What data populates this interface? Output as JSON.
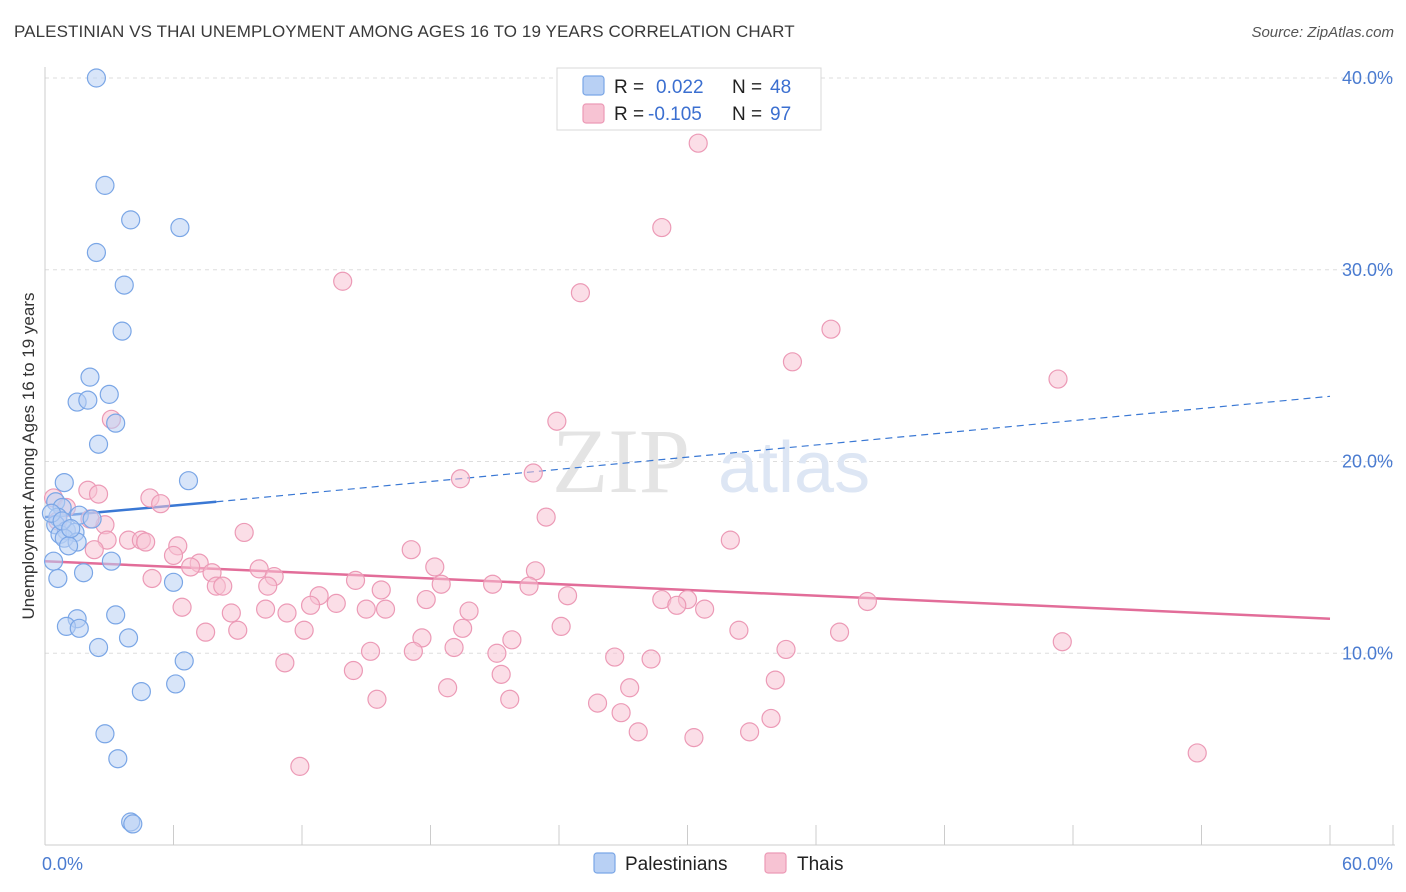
{
  "title": "PALESTINIAN VS THAI UNEMPLOYMENT AMONG AGES 16 TO 19 YEARS CORRELATION CHART",
  "source": "Source: ZipAtlas.com",
  "watermark": {
    "zip": "ZIP",
    "atlas": "atlas"
  },
  "colors": {
    "palestinians_fill": "#b8d0f4",
    "palestinians_stroke": "#7aa6e6",
    "palestinians_line": "#3a78d4",
    "thais_fill": "#f7c3d3",
    "thais_stroke": "#ec9ab6",
    "thais_line": "#e26d99",
    "tick_text": "#4a7bd0"
  },
  "legend": {
    "r_label": "R =",
    "n_label": "N =",
    "rows": [
      {
        "r": "0.022",
        "n": "48"
      },
      {
        "r": "-0.105",
        "n": "97"
      }
    ]
  },
  "chart_data": {
    "type": "scatter",
    "title": "PALESTINIAN VS THAI UNEMPLOYMENT AMONG AGES 16 TO 19 YEARS CORRELATION CHART",
    "xlabel": "",
    "ylabel": "Unemployment Among Ages 16 to 19 years",
    "xlim": [
      0,
      60
    ],
    "ylim": [
      0,
      40
    ],
    "x_tick_labels": [
      "0.0%",
      "60.0%"
    ],
    "y_ticks": [
      10,
      20,
      30,
      40
    ],
    "y_tick_labels": [
      "10.0%",
      "20.0%",
      "30.0%",
      "40.0%"
    ],
    "grid": true,
    "legend_position": "top-center",
    "series": [
      {
        "name": "Palestinians",
        "r": 0.022,
        "n": 48,
        "trend": {
          "x0": 0,
          "y0": 17.1,
          "x1": 8,
          "y1": 17.9,
          "dashed_to_x": 60,
          "dashed_to_y": 23.4
        },
        "points": [
          [
            2.4,
            40.0
          ],
          [
            2.8,
            34.4
          ],
          [
            4.0,
            32.6
          ],
          [
            6.3,
            32.2
          ],
          [
            2.4,
            30.9
          ],
          [
            3.7,
            29.2
          ],
          [
            3.6,
            26.8
          ],
          [
            2.1,
            24.4
          ],
          [
            1.5,
            23.1
          ],
          [
            3.0,
            23.5
          ],
          [
            2.0,
            23.2
          ],
          [
            3.3,
            22.0
          ],
          [
            2.5,
            20.9
          ],
          [
            0.9,
            18.9
          ],
          [
            6.7,
            19.0
          ],
          [
            0.5,
            17.9
          ],
          [
            0.8,
            17.6
          ],
          [
            1.6,
            17.2
          ],
          [
            0.6,
            17.1
          ],
          [
            2.2,
            17.0
          ],
          [
            0.5,
            16.7
          ],
          [
            1.0,
            16.4
          ],
          [
            0.7,
            16.2
          ],
          [
            1.4,
            16.3
          ],
          [
            0.9,
            16.0
          ],
          [
            1.5,
            15.8
          ],
          [
            1.1,
            15.6
          ],
          [
            0.4,
            14.8
          ],
          [
            3.1,
            14.8
          ],
          [
            1.8,
            14.2
          ],
          [
            0.6,
            13.9
          ],
          [
            6.0,
            13.7
          ],
          [
            3.3,
            12.0
          ],
          [
            1.5,
            11.8
          ],
          [
            1.0,
            11.4
          ],
          [
            1.6,
            11.3
          ],
          [
            3.9,
            10.8
          ],
          [
            2.5,
            10.3
          ],
          [
            6.5,
            9.6
          ],
          [
            6.1,
            8.4
          ],
          [
            4.5,
            8.0
          ],
          [
            2.8,
            5.8
          ],
          [
            3.4,
            4.5
          ],
          [
            4.0,
            1.2
          ],
          [
            4.1,
            1.1
          ],
          [
            0.3,
            17.3
          ],
          [
            0.8,
            16.9
          ],
          [
            1.2,
            16.5
          ]
        ]
      },
      {
        "name": "Thais",
        "r": -0.105,
        "n": 97,
        "trend": {
          "x0": 0,
          "y0": 14.8,
          "x1": 60,
          "y1": 11.8
        },
        "points": [
          [
            30.5,
            36.6
          ],
          [
            28.8,
            32.2
          ],
          [
            13.9,
            29.4
          ],
          [
            25.0,
            28.8
          ],
          [
            36.7,
            26.9
          ],
          [
            34.9,
            25.2
          ],
          [
            47.3,
            24.3
          ],
          [
            3.1,
            22.2
          ],
          [
            23.9,
            22.1
          ],
          [
            19.4,
            19.1
          ],
          [
            22.8,
            19.4
          ],
          [
            0.4,
            18.1
          ],
          [
            2.0,
            18.5
          ],
          [
            2.5,
            18.3
          ],
          [
            4.9,
            18.1
          ],
          [
            5.4,
            17.8
          ],
          [
            1.0,
            17.6
          ],
          [
            23.4,
            17.1
          ],
          [
            0.6,
            16.9
          ],
          [
            2.8,
            16.7
          ],
          [
            9.3,
            16.3
          ],
          [
            2.9,
            15.9
          ],
          [
            3.9,
            15.9
          ],
          [
            4.5,
            15.9
          ],
          [
            4.7,
            15.8
          ],
          [
            6.2,
            15.6
          ],
          [
            32.0,
            15.9
          ],
          [
            2.3,
            15.4
          ],
          [
            17.1,
            15.4
          ],
          [
            6.0,
            15.1
          ],
          [
            7.2,
            14.7
          ],
          [
            6.8,
            14.5
          ],
          [
            10.0,
            14.4
          ],
          [
            18.2,
            14.5
          ],
          [
            22.9,
            14.3
          ],
          [
            7.8,
            14.2
          ],
          [
            10.7,
            14.0
          ],
          [
            5.0,
            13.9
          ],
          [
            14.5,
            13.8
          ],
          [
            8.0,
            13.5
          ],
          [
            8.3,
            13.5
          ],
          [
            10.4,
            13.5
          ],
          [
            18.5,
            13.6
          ],
          [
            20.9,
            13.6
          ],
          [
            22.6,
            13.5
          ],
          [
            15.7,
            13.3
          ],
          [
            12.8,
            13.0
          ],
          [
            24.4,
            13.0
          ],
          [
            28.8,
            12.8
          ],
          [
            30.0,
            12.8
          ],
          [
            38.4,
            12.7
          ],
          [
            13.6,
            12.6
          ],
          [
            12.4,
            12.5
          ],
          [
            17.8,
            12.8
          ],
          [
            29.5,
            12.5
          ],
          [
            6.4,
            12.4
          ],
          [
            10.3,
            12.3
          ],
          [
            15.0,
            12.3
          ],
          [
            15.9,
            12.3
          ],
          [
            8.7,
            12.1
          ],
          [
            11.3,
            12.1
          ],
          [
            19.8,
            12.2
          ],
          [
            30.8,
            12.3
          ],
          [
            19.5,
            11.3
          ],
          [
            24.1,
            11.4
          ],
          [
            32.4,
            11.2
          ],
          [
            7.5,
            11.1
          ],
          [
            9.0,
            11.2
          ],
          [
            12.1,
            11.2
          ],
          [
            37.1,
            11.1
          ],
          [
            17.6,
            10.8
          ],
          [
            21.8,
            10.7
          ],
          [
            47.5,
            10.6
          ],
          [
            19.1,
            10.3
          ],
          [
            17.2,
            10.1
          ],
          [
            21.1,
            10.0
          ],
          [
            34.6,
            10.2
          ],
          [
            15.2,
            10.1
          ],
          [
            26.6,
            9.8
          ],
          [
            28.3,
            9.7
          ],
          [
            11.2,
            9.5
          ],
          [
            14.4,
            9.1
          ],
          [
            21.3,
            8.9
          ],
          [
            34.1,
            8.6
          ],
          [
            18.8,
            8.2
          ],
          [
            27.3,
            8.2
          ],
          [
            15.5,
            7.6
          ],
          [
            21.7,
            7.6
          ],
          [
            25.8,
            7.4
          ],
          [
            26.9,
            6.9
          ],
          [
            33.9,
            6.6
          ],
          [
            27.7,
            5.9
          ],
          [
            32.9,
            5.9
          ],
          [
            30.3,
            5.6
          ],
          [
            53.8,
            4.8
          ],
          [
            11.9,
            4.1
          ],
          [
            2.1,
            17.0
          ]
        ]
      }
    ]
  }
}
